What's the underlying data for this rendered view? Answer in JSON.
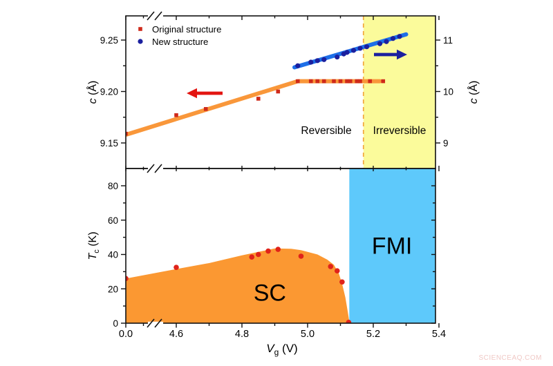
{
  "watermark": {
    "text": "SCIENCEAQ.COM",
    "color": "#f0c9c6"
  },
  "colors": {
    "sc_orange": "#fb9832",
    "trend_orange": "#f9973a",
    "fmi_blue": "#5ec9fb",
    "irreversible_yellow": "#fbfb9b",
    "original_red": "#cf2a1b",
    "point_red": "#e0231a",
    "new_blue_marker": "#1b209f",
    "new_blue_line": "#1e6fe8",
    "dashed_boundary": "#f2a53c",
    "arrow_red": "#e31511",
    "arrow_blue": "#1b209f",
    "axis_black": "#111111"
  },
  "chart_data": [
    {
      "type": "scatter",
      "panel": "top",
      "legend": [
        {
          "label": "Original structure",
          "marker": "square",
          "color_ref": "original_red"
        },
        {
          "label": "New structure",
          "marker": "circle",
          "color_ref": "new_blue_marker"
        }
      ],
      "left_axis": {
        "label": {
          "variable": "c",
          "subscript": "",
          "unit": "(Å)"
        },
        "ticks": [
          [
            9.15,
            "9.15"
          ],
          [
            9.2,
            "9.20"
          ],
          [
            9.25,
            "9.25"
          ]
        ],
        "minor_ticks": [
          9.175,
          9.225
        ],
        "range": [
          9.125,
          9.274
        ]
      },
      "right_axis": {
        "label": {
          "variable": "c",
          "subscript": "",
          "unit": "(Å)"
        },
        "ticks": [
          [
            9,
            "9"
          ],
          [
            10,
            "10"
          ],
          [
            11,
            "11"
          ]
        ],
        "minor_ticks": [
          9.5,
          10.5
        ],
        "range": [
          9.0,
          11.47
        ]
      },
      "series": [
        {
          "name": "Original structure",
          "axis": "left",
          "marker": "square",
          "color_ref": "original_red",
          "points": [
            [
              0,
              9.159
            ],
            [
              4.6,
              9.177
            ],
            [
              4.69,
              9.183
            ],
            [
              4.85,
              9.193
            ],
            [
              4.91,
              9.2
            ],
            [
              4.97,
              9.21
            ],
            [
              5.01,
              9.21
            ],
            [
              5.03,
              9.21
            ],
            [
              5.05,
              9.21
            ],
            [
              5.08,
              9.21
            ],
            [
              5.1,
              9.21
            ],
            [
              5.12,
              9.21
            ],
            [
              5.13,
              9.21
            ],
            [
              5.15,
              9.21
            ],
            [
              5.16,
              9.21
            ],
            [
              5.19,
              9.21
            ],
            [
              5.23,
              9.21
            ]
          ]
        },
        {
          "name": "New structure",
          "axis": "right",
          "marker": "circle",
          "color_ref": "new_blue_marker",
          "points": [
            [
              4.97,
              10.5
            ],
            [
              5.01,
              10.57
            ],
            [
              5.03,
              10.6
            ],
            [
              5.05,
              10.62
            ],
            [
              5.09,
              10.67
            ],
            [
              5.11,
              10.73
            ],
            [
              5.12,
              10.76
            ],
            [
              5.14,
              10.8
            ],
            [
              5.16,
              10.84
            ],
            [
              5.18,
              10.87
            ],
            [
              5.22,
              10.93
            ],
            [
              5.24,
              10.97
            ],
            [
              5.26,
              11.03
            ],
            [
              5.28,
              11.07
            ]
          ]
        }
      ],
      "trend_lines": [
        {
          "axis": "left",
          "color_ref": "trend_orange",
          "width": 6,
          "points": [
            [
              0,
              9.158
            ],
            [
              4.97,
              9.21
            ],
            [
              5.22,
              9.21
            ]
          ]
        },
        {
          "axis": "right",
          "color_ref": "new_blue_line",
          "width": 6,
          "points": [
            [
              4.96,
              10.47
            ],
            [
              5.3,
              11.11
            ]
          ]
        }
      ],
      "boundary_line": {
        "x": 5.17,
        "style": "dashed",
        "color_ref": "dashed_boundary"
      },
      "regions": [
        {
          "from": 5.17,
          "to": 5.4,
          "color_ref": "irreversible_yellow"
        }
      ],
      "annotations": [
        {
          "text": "Reversible"
        },
        {
          "text": "Irreversible"
        }
      ],
      "arrows": [
        {
          "direction": "left",
          "color_ref": "arrow_red"
        },
        {
          "direction": "right",
          "color_ref": "arrow_blue"
        }
      ]
    },
    {
      "type": "area+scatter",
      "panel": "bottom",
      "x_axis": {
        "label": {
          "variable": "V",
          "subscript": "g",
          "unit": "(V)"
        },
        "ticks": [
          [
            0,
            "0.0"
          ],
          [
            4.6,
            "4.6"
          ],
          [
            4.8,
            "4.8"
          ],
          [
            5.0,
            "5.0"
          ],
          [
            5.2,
            "5.2"
          ],
          [
            5.4,
            "5.4"
          ]
        ],
        "minor_ticks": [
          4.5,
          4.7,
          4.9,
          5.1,
          5.3
        ],
        "axis_break": "between 0.0 and 4.6"
      },
      "y_axis": {
        "label": {
          "variable": "T",
          "subscript": "c",
          "unit": "(K)"
        },
        "ticks": [
          [
            0,
            "0"
          ],
          [
            20,
            "20"
          ],
          [
            40,
            "40"
          ],
          [
            60,
            "60"
          ],
          [
            80,
            "80"
          ]
        ],
        "minor_ticks": [
          10,
          30,
          50,
          70
        ],
        "range": [
          0,
          90
        ]
      },
      "sc_dome": {
        "label": "SC",
        "color_ref": "sc_orange",
        "boundary_points": [
          [
            0,
            26
          ],
          [
            4.6,
            31.5
          ],
          [
            4.7,
            35
          ],
          [
            4.8,
            39.5
          ],
          [
            4.9,
            43.5
          ],
          [
            4.95,
            43.3
          ],
          [
            4.98,
            42.5
          ],
          [
            5.03,
            40
          ],
          [
            5.06,
            37
          ],
          [
            5.08,
            34
          ],
          [
            5.095,
            29
          ],
          [
            5.105,
            23
          ],
          [
            5.115,
            15
          ],
          [
            5.122,
            7
          ],
          [
            5.128,
            0
          ]
        ]
      },
      "fmi_region": {
        "label": "FMI",
        "color_ref": "fmi_blue",
        "from": 5.127,
        "to": 5.4
      },
      "data_points": {
        "marker": "circle",
        "color_ref": "point_red",
        "points": [
          [
            0,
            26
          ],
          [
            4.6,
            32.5
          ],
          [
            4.83,
            38.5
          ],
          [
            4.85,
            40
          ],
          [
            4.88,
            42
          ],
          [
            4.91,
            43
          ],
          [
            4.98,
            39
          ],
          [
            5.07,
            33
          ],
          [
            5.09,
            30.5
          ],
          [
            5.105,
            24
          ],
          [
            5.125,
            0.5
          ]
        ]
      }
    }
  ]
}
